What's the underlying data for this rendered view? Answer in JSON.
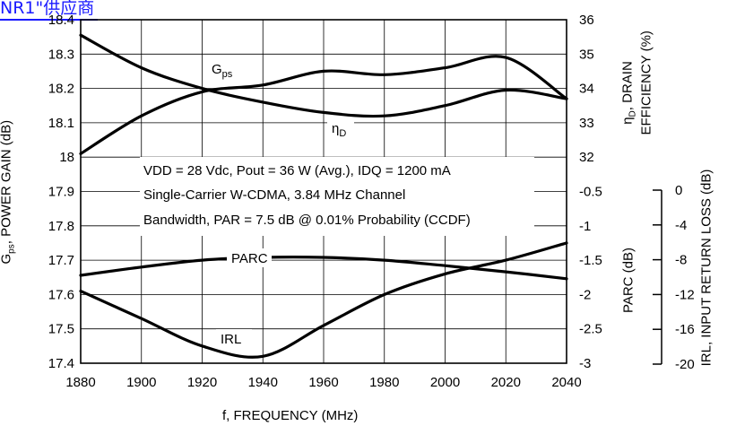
{
  "banner": "NR1\"供应商",
  "chart_data": {
    "type": "line",
    "title": "",
    "xlabel": "f, FREQUENCY (MHz)",
    "x_ticks": [
      1880,
      1900,
      1920,
      1940,
      1960,
      1980,
      2000,
      2020,
      2040
    ],
    "xlim": [
      1880,
      2040
    ],
    "y_left": {
      "label": "Gps, POWER GAIN (dB)",
      "ylim": [
        17.4,
        18.4
      ],
      "ticks": [
        "18.4",
        "18.3",
        "18.2",
        "18.1",
        "18",
        "17.9",
        "17.8",
        "17.7",
        "17.6",
        "17.5",
        "17.4"
      ]
    },
    "y_right_upper": {
      "label_line1": "ηD, DRAIN",
      "label_line2": "EFFICIENCY (%)",
      "ylim": [
        32,
        36
      ],
      "ticks": [
        "36",
        "35",
        "34",
        "33",
        "32"
      ]
    },
    "y_right_lower": {
      "label": "PARC (dB)",
      "ylim": [
        -3,
        -0.5
      ],
      "ticks": [
        "-0.5",
        "-1",
        "-1.5",
        "-2",
        "-2.5",
        "-3"
      ]
    },
    "y_irl": {
      "label": "IRL, INPUT RETURN LOSS (dB)",
      "ylim": [
        -20,
        0
      ],
      "ticks": [
        "0",
        "-4",
        "-8",
        "-12",
        "-16",
        "-20"
      ]
    },
    "annotation": {
      "line1": "VDD = 28 Vdc, Pout = 36 W (Avg.), IDQ = 1200 mA",
      "line2": "Single-Carrier W-CDMA, 3.84 MHz Channel",
      "line3": "Bandwidth, PAR = 7.5 dB @ 0.01% Probability (CCDF)"
    },
    "grid": true,
    "series": [
      {
        "name": "Gps",
        "axis": "left",
        "x": [
          1880,
          1900,
          1920,
          1940,
          1960,
          1980,
          2000,
          2020,
          2040
        ],
        "y": [
          18.01,
          18.12,
          18.19,
          18.21,
          18.25,
          18.24,
          18.26,
          18.29,
          18.17
        ]
      },
      {
        "name": "ηD",
        "axis": "right_upper",
        "x": [
          1880,
          1900,
          1920,
          1940,
          1960,
          1980,
          2000,
          2020,
          2040
        ],
        "y": [
          35.55,
          34.6,
          34.0,
          33.6,
          33.3,
          33.2,
          33.5,
          33.95,
          33.7
        ]
      },
      {
        "name": "PARC",
        "axis": "right_lower",
        "x": [
          1880,
          1900,
          1920,
          1940,
          1960,
          1980,
          2000,
          2020,
          2040
        ],
        "y": [
          -1.72,
          -1.6,
          -1.5,
          -1.46,
          -1.46,
          -1.5,
          -1.58,
          -1.67,
          -1.77
        ]
      },
      {
        "name": "IRL",
        "axis": "left",
        "x": [
          1880,
          1900,
          1920,
          1940,
          1960,
          1980,
          2000,
          2020,
          2040
        ],
        "y": [
          17.61,
          17.53,
          17.45,
          17.42,
          17.51,
          17.6,
          17.66,
          17.7,
          17.75
        ]
      }
    ]
  }
}
